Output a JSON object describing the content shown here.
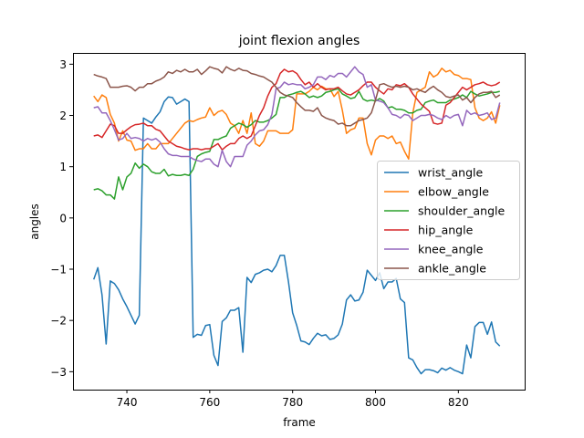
{
  "chart_data": {
    "type": "line",
    "title": "joint flexion angles",
    "xlabel": "frame",
    "ylabel": "angles",
    "xlim": [
      727,
      836
    ],
    "ylim": [
      -3.35,
      3.22
    ],
    "xticks": [
      740,
      760,
      780,
      800,
      820
    ],
    "yticks": [
      -3,
      -2,
      -1,
      0,
      1,
      2,
      3
    ],
    "grid": false,
    "legend_position": "center-right",
    "x_start": 732,
    "series": [
      {
        "name": "wrist_angle",
        "color": "#1f77b4",
        "values": [
          -1.2,
          -0.97,
          -1.5,
          -2.46,
          -1.23,
          -1.28,
          -1.4,
          -1.58,
          -1.73,
          -1.9,
          -2.07,
          -1.9,
          1.95,
          1.9,
          1.85,
          1.97,
          2.07,
          2.27,
          2.36,
          2.35,
          2.22,
          2.27,
          2.32,
          2.27,
          -2.33,
          -2.27,
          -2.29,
          -2.1,
          -2.08,
          -2.68,
          -2.88,
          -2.02,
          -1.95,
          -1.8,
          -1.8,
          -1.75,
          -2.62,
          -1.16,
          -1.26,
          -1.1,
          -1.07,
          -1.02,
          -1.0,
          -1.05,
          -0.93,
          -0.73,
          -0.73,
          -1.25,
          -1.85,
          -2.1,
          -2.4,
          -2.42,
          -2.47,
          -2.35,
          -2.25,
          -2.3,
          -2.28,
          -2.37,
          -2.35,
          -2.28,
          -2.07,
          -1.6,
          -1.5,
          -1.62,
          -1.6,
          -1.45,
          -1.02,
          -1.12,
          -1.22,
          -1.07,
          -1.38,
          -1.25,
          -1.25,
          -1.18,
          -1.58,
          -1.65,
          -2.73,
          -2.77,
          -2.92,
          -3.04,
          -2.96,
          -2.96,
          -2.98,
          -3.02,
          -2.93,
          -2.97,
          -2.92,
          -2.97,
          -3.0,
          -3.04,
          -2.48,
          -2.73,
          -2.12,
          -2.04,
          -2.04,
          -2.27,
          -2.03,
          -2.42,
          -2.5
        ]
      },
      {
        "name": "elbow_angle",
        "color": "#ff7f0e",
        "values": [
          2.38,
          2.27,
          2.4,
          2.35,
          2.02,
          1.85,
          1.5,
          1.7,
          1.52,
          1.5,
          1.32,
          1.35,
          1.35,
          1.45,
          1.35,
          1.35,
          1.45,
          1.45,
          1.45,
          1.55,
          1.65,
          1.75,
          1.85,
          1.9,
          1.88,
          1.92,
          1.95,
          1.97,
          2.15,
          2.0,
          2.07,
          2.1,
          2.02,
          1.85,
          1.8,
          1.65,
          1.9,
          1.65,
          2.05,
          1.45,
          1.4,
          1.5,
          1.7,
          1.7,
          1.7,
          1.65,
          1.65,
          1.65,
          1.72,
          2.42,
          2.42,
          2.42,
          2.47,
          2.55,
          2.5,
          2.57,
          2.52,
          2.52,
          2.37,
          2.47,
          2.1,
          1.65,
          1.72,
          1.75,
          1.95,
          1.95,
          1.45,
          1.23,
          1.52,
          1.6,
          1.6,
          1.55,
          1.6,
          1.45,
          1.48,
          1.3,
          1.15,
          2.05,
          2.45,
          2.5,
          2.55,
          2.85,
          2.75,
          2.8,
          2.92,
          2.85,
          2.88,
          2.8,
          2.78,
          2.72,
          2.72,
          2.7,
          2.15,
          1.95,
          1.9,
          1.95,
          2.07,
          1.85,
          2.2
        ]
      },
      {
        "name": "shoulder_angle",
        "color": "#2ca02c",
        "values": [
          0.55,
          0.57,
          0.53,
          0.45,
          0.45,
          0.37,
          0.8,
          0.55,
          0.8,
          0.87,
          1.07,
          0.97,
          1.05,
          1.0,
          0.9,
          0.87,
          0.87,
          0.95,
          0.82,
          0.85,
          0.83,
          0.83,
          0.85,
          0.83,
          0.95,
          1.2,
          1.25,
          1.28,
          1.3,
          1.53,
          1.53,
          1.57,
          1.6,
          1.75,
          1.8,
          1.85,
          1.82,
          1.77,
          1.82,
          1.9,
          1.87,
          1.87,
          1.9,
          1.95,
          2.02,
          2.35,
          2.35,
          2.4,
          2.42,
          2.45,
          2.47,
          2.42,
          2.35,
          2.38,
          2.35,
          2.38,
          2.45,
          2.47,
          2.5,
          2.52,
          2.42,
          2.38,
          2.33,
          2.35,
          2.47,
          2.32,
          2.28,
          2.3,
          2.28,
          2.33,
          2.28,
          2.15,
          2.17,
          2.12,
          2.12,
          2.1,
          2.05,
          2.05,
          2.1,
          2.12,
          2.25,
          2.28,
          2.3,
          2.25,
          2.25,
          2.25,
          2.3,
          2.32,
          2.35,
          2.4,
          2.35,
          2.47,
          2.42,
          2.38,
          2.4,
          2.42,
          2.45,
          2.45,
          2.47
        ]
      },
      {
        "name": "hip_angle",
        "color": "#d62728",
        "values": [
          1.6,
          1.62,
          1.57,
          1.7,
          1.83,
          1.8,
          1.65,
          1.65,
          1.72,
          1.78,
          1.82,
          1.83,
          1.85,
          1.8,
          1.8,
          1.73,
          1.7,
          1.6,
          1.5,
          1.45,
          1.4,
          1.38,
          1.35,
          1.33,
          1.35,
          1.35,
          1.33,
          1.35,
          1.35,
          1.4,
          1.45,
          1.33,
          1.4,
          1.45,
          1.45,
          1.55,
          1.6,
          1.55,
          1.6,
          1.8,
          2.0,
          2.15,
          2.38,
          2.55,
          2.62,
          2.82,
          2.9,
          2.85,
          2.87,
          2.82,
          2.7,
          2.6,
          2.65,
          2.55,
          2.62,
          2.55,
          2.5,
          2.52,
          2.52,
          2.55,
          2.48,
          2.42,
          2.4,
          2.45,
          2.5,
          2.58,
          2.65,
          2.65,
          2.55,
          2.48,
          2.42,
          2.52,
          2.5,
          2.6,
          2.58,
          2.62,
          2.55,
          2.42,
          2.32,
          2.22,
          2.15,
          2.08,
          1.85,
          1.83,
          1.85,
          2.2,
          2.25,
          2.35,
          2.45,
          2.55,
          2.5,
          2.55,
          2.6,
          2.62,
          2.65,
          2.6,
          2.58,
          2.6,
          2.65
        ]
      },
      {
        "name": "knee_angle",
        "color": "#9467bd",
        "values": [
          2.15,
          2.17,
          2.05,
          2.05,
          1.9,
          1.72,
          1.52,
          1.55,
          1.65,
          1.55,
          1.57,
          1.55,
          1.5,
          1.55,
          1.52,
          1.55,
          1.48,
          1.35,
          1.25,
          1.22,
          1.22,
          1.2,
          1.2,
          1.2,
          1.15,
          1.12,
          1.1,
          1.15,
          1.15,
          1.05,
          1.0,
          1.32,
          1.1,
          1.0,
          1.2,
          1.2,
          1.2,
          1.42,
          1.5,
          1.62,
          1.7,
          1.72,
          1.82,
          2.02,
          2.52,
          2.55,
          2.65,
          2.6,
          2.62,
          2.6,
          2.6,
          2.52,
          2.55,
          2.6,
          2.75,
          2.75,
          2.7,
          2.78,
          2.75,
          2.82,
          2.82,
          2.75,
          2.85,
          2.95,
          2.85,
          2.8,
          2.55,
          2.6,
          2.3,
          2.28,
          2.25,
          2.15,
          2.02,
          2.0,
          1.95,
          2.02,
          2.0,
          1.9,
          1.95,
          2.0,
          2.0,
          2.02,
          2.0,
          1.95,
          1.92,
          2.0,
          1.95,
          2.0,
          2.02,
          1.8,
          2.1,
          2.02,
          2.05,
          2.0,
          2.02,
          2.05,
          1.92,
          1.95,
          2.25
        ]
      },
      {
        "name": "ankle_angle",
        "color": "#8c564b",
        "values": [
          2.8,
          2.77,
          2.75,
          2.72,
          2.55,
          2.55,
          2.55,
          2.57,
          2.58,
          2.55,
          2.48,
          2.55,
          2.55,
          2.62,
          2.62,
          2.67,
          2.7,
          2.75,
          2.85,
          2.82,
          2.88,
          2.85,
          2.9,
          2.85,
          2.85,
          2.9,
          2.8,
          2.87,
          2.95,
          2.92,
          2.9,
          2.83,
          2.95,
          2.9,
          2.87,
          2.92,
          2.88,
          2.87,
          2.82,
          2.8,
          2.77,
          2.75,
          2.7,
          2.65,
          2.55,
          2.45,
          2.4,
          2.38,
          2.35,
          2.25,
          2.17,
          2.1,
          2.1,
          2.08,
          2.15,
          2.0,
          1.95,
          1.92,
          1.9,
          1.83,
          1.85,
          1.8,
          1.8,
          1.85,
          1.9,
          1.92,
          1.95,
          2.05,
          2.3,
          2.6,
          2.62,
          2.58,
          2.55,
          2.57,
          2.55,
          2.57,
          2.55,
          2.5,
          2.52,
          2.48,
          2.45,
          2.52,
          2.57,
          2.5,
          2.45,
          2.37,
          2.35,
          2.38,
          2.4,
          2.3,
          2.35,
          2.25,
          2.35,
          2.42,
          2.45,
          2.45,
          2.47,
          2.35,
          2.4
        ]
      }
    ]
  }
}
